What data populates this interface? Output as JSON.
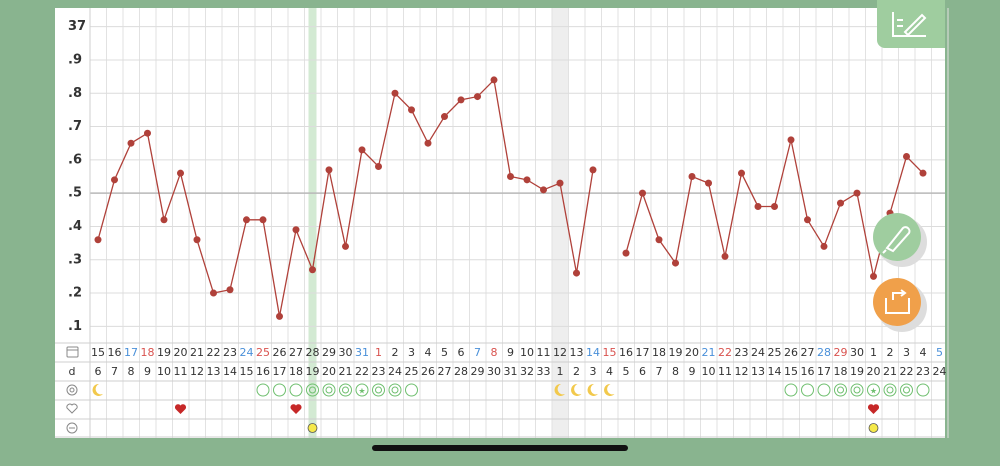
{
  "chart_data": {
    "type": "line",
    "ylim": [
      36.05,
      37.05
    ],
    "yticks": [
      {
        "value": 36.1,
        "label": ".1"
      },
      {
        "value": 36.2,
        "label": ".2"
      },
      {
        "value": 36.3,
        "label": ".3"
      },
      {
        "value": 36.4,
        "label": ".4"
      },
      {
        "value": 36.5,
        "label": ".5"
      },
      {
        "value": 36.6,
        "label": ".6"
      },
      {
        "value": 36.7,
        "label": ".7"
      },
      {
        "value": 36.8,
        "label": ".8"
      },
      {
        "value": 36.9,
        "label": ".9"
      },
      37
    ],
    "categories": [
      "15",
      "16",
      "17",
      "18",
      "19",
      "20",
      "21",
      "22",
      "23",
      "24",
      "25",
      "26",
      "27",
      "28",
      "29",
      "30",
      "31",
      "1",
      "2",
      "3",
      "4",
      "5",
      "6",
      "7",
      "8",
      "9",
      "10",
      "11",
      "12",
      "13",
      "14",
      "15",
      "16",
      "17",
      "18",
      "19",
      "20",
      "21",
      "22",
      "23",
      "24",
      "25",
      "26",
      "27",
      "28",
      "29",
      "30",
      "1",
      "2",
      "3",
      "4",
      "5"
    ],
    "cycle_day_label": "d",
    "cycle_days": [
      "6",
      "7",
      "8",
      "9",
      "10",
      "11",
      "12",
      "13",
      "14",
      "15",
      "16",
      "17",
      "18",
      "19",
      "20",
      "21",
      "22",
      "23",
      "24",
      "25",
      "26",
      "27",
      "28",
      "29",
      "30",
      "31",
      "32",
      "33",
      "1",
      "2",
      "3",
      "4",
      "5",
      "6",
      "7",
      "8",
      "9",
      "10",
      "11",
      "12",
      "13",
      "14",
      "15",
      "16",
      "17",
      "18",
      "19",
      "20",
      "21",
      "22",
      "23",
      "24"
    ],
    "grid": true,
    "series": [
      {
        "color": "#b0413a",
        "values": [
          36.36,
          36.54,
          36.65,
          36.68,
          36.42,
          36.56,
          36.36,
          36.2,
          36.21,
          36.42,
          36.42,
          36.13,
          36.39,
          36.27,
          36.57,
          36.34,
          36.63,
          36.58,
          36.8,
          36.75,
          36.65,
          36.73,
          36.78,
          36.79,
          36.84,
          36.55,
          36.54,
          36.51,
          36.53,
          36.26,
          36.57,
          null,
          36.32,
          36.5,
          36.36,
          36.29,
          36.55,
          36.53,
          36.31,
          36.56,
          36.46,
          36.46,
          36.66,
          36.42,
          36.34,
          36.47,
          36.5,
          36.25,
          36.44,
          36.61,
          36.56,
          null
        ]
      }
    ]
  }
}
